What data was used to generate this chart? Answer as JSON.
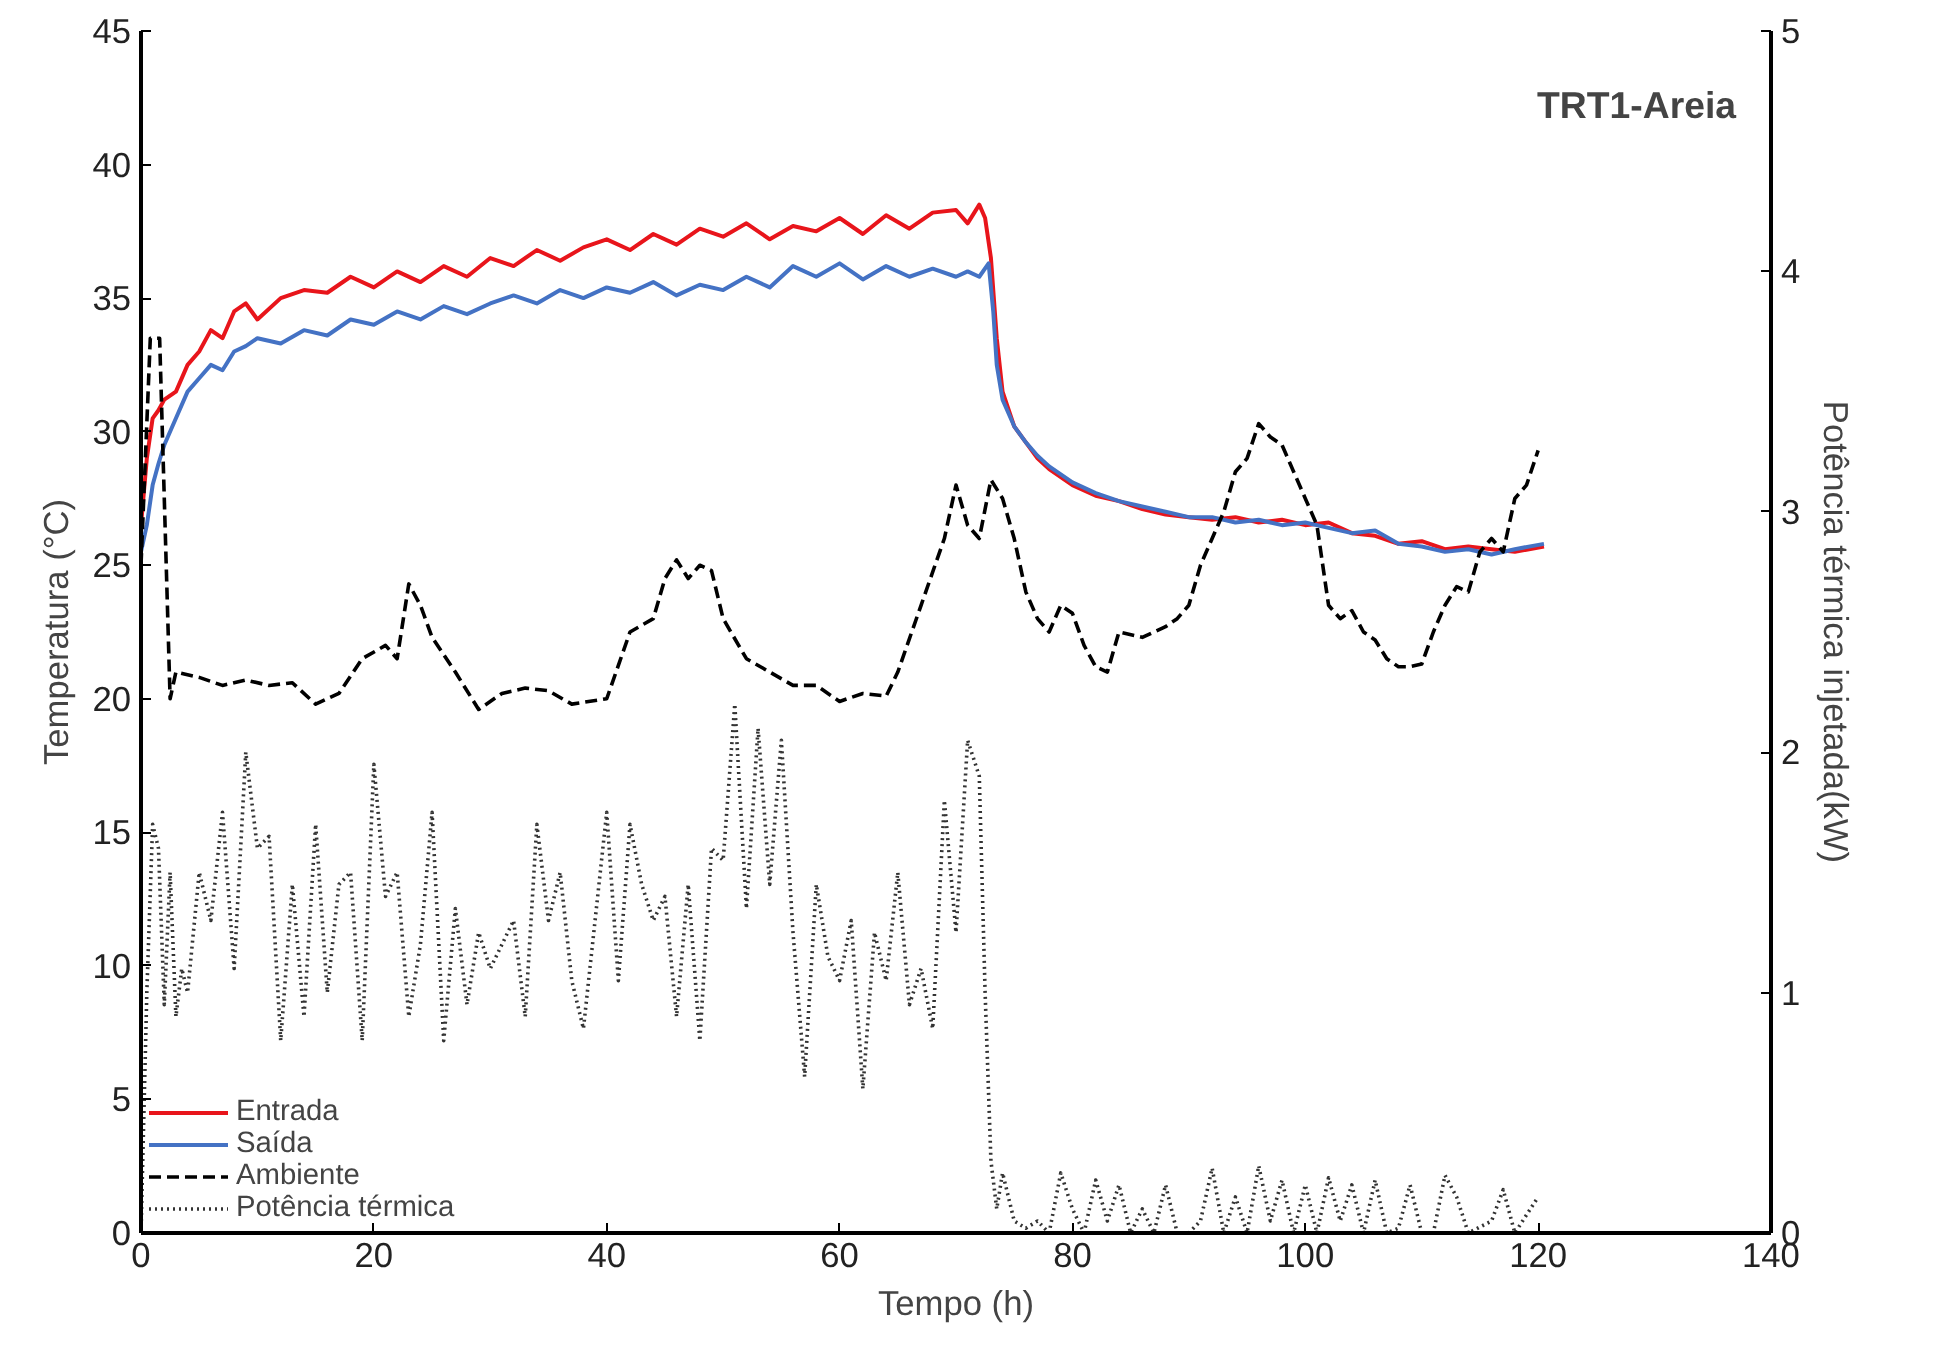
{
  "chart_data": {
    "type": "line",
    "title": "TRT1-Areia",
    "xlabel": "Tempo (h)",
    "ylabel": "Temperatura (°C)",
    "y2label": "Potência térmica injetada(kW)",
    "xlim": [
      0,
      140
    ],
    "xticks": [
      0,
      20,
      40,
      60,
      80,
      100,
      120,
      140
    ],
    "ylim": [
      0,
      45
    ],
    "yticks": [
      0,
      5,
      10,
      15,
      20,
      25,
      30,
      35,
      40,
      45
    ],
    "y2lim": [
      0,
      5
    ],
    "y2ticks": [
      0,
      1,
      2,
      3,
      4,
      5
    ],
    "grid": false,
    "legend": "bottom left",
    "marker": "none",
    "series": [
      {
        "name": "Entrada",
        "color": "#e8151b",
        "line_style": "solid",
        "x": [
          0,
          0.5,
          1,
          1.5,
          2,
          3,
          4,
          5,
          6,
          7,
          8,
          9,
          10,
          12,
          14,
          16,
          18,
          20,
          22,
          24,
          26,
          28,
          30,
          32,
          34,
          36,
          38,
          40,
          42,
          44,
          46,
          48,
          50,
          52,
          54,
          56,
          58,
          60,
          62,
          64,
          66,
          68,
          70,
          71,
          72,
          72.5,
          73,
          73.5,
          74,
          75,
          76,
          77,
          78,
          80,
          82,
          84,
          86,
          88,
          90,
          92,
          94,
          96,
          98,
          100,
          102,
          104,
          106,
          108,
          110,
          112,
          114,
          116,
          118,
          120.5
        ],
        "values": [
          26.5,
          29,
          30.5,
          30.8,
          31.2,
          31.5,
          32.5,
          33,
          33.8,
          33.5,
          34.5,
          34.8,
          34.2,
          35,
          35.3,
          35.2,
          35.8,
          35.4,
          36,
          35.6,
          36.2,
          35.8,
          36.5,
          36.2,
          36.8,
          36.4,
          36.9,
          37.2,
          36.8,
          37.4,
          37,
          37.6,
          37.3,
          37.8,
          37.2,
          37.7,
          37.5,
          38,
          37.4,
          38.1,
          37.6,
          38.2,
          38.3,
          37.8,
          38.5,
          38,
          36.5,
          33.5,
          31.5,
          30.2,
          29.6,
          29,
          28.6,
          28,
          27.6,
          27.4,
          27.1,
          26.9,
          26.8,
          26.7,
          26.8,
          26.6,
          26.7,
          26.5,
          26.6,
          26.2,
          26.1,
          25.8,
          25.9,
          25.6,
          25.7,
          25.6,
          25.5,
          25.7
        ]
      },
      {
        "name": "Saída",
        "color": "#4472c4",
        "line_style": "solid",
        "x": [
          0,
          0.5,
          1,
          1.5,
          2,
          3,
          4,
          5,
          6,
          7,
          8,
          9,
          10,
          12,
          14,
          16,
          18,
          20,
          22,
          24,
          26,
          28,
          30,
          32,
          34,
          36,
          38,
          40,
          42,
          44,
          46,
          48,
          50,
          52,
          54,
          56,
          58,
          60,
          62,
          64,
          66,
          68,
          70,
          71,
          72,
          72.8,
          73.2,
          73.5,
          74,
          75,
          76,
          77,
          78,
          80,
          82,
          84,
          86,
          88,
          90,
          92,
          94,
          96,
          98,
          100,
          102,
          104,
          106,
          108,
          110,
          112,
          114,
          116,
          118,
          120.5
        ],
        "values": [
          25.5,
          26.5,
          28,
          28.8,
          29.5,
          30.5,
          31.5,
          32,
          32.5,
          32.3,
          33,
          33.2,
          33.5,
          33.3,
          33.8,
          33.6,
          34.2,
          34,
          34.5,
          34.2,
          34.7,
          34.4,
          34.8,
          35.1,
          34.8,
          35.3,
          35,
          35.4,
          35.2,
          35.6,
          35.1,
          35.5,
          35.3,
          35.8,
          35.4,
          36.2,
          35.8,
          36.3,
          35.7,
          36.2,
          35.8,
          36.1,
          35.8,
          36,
          35.8,
          36.3,
          34.5,
          32.5,
          31.2,
          30.2,
          29.6,
          29.1,
          28.7,
          28.1,
          27.7,
          27.4,
          27.2,
          27,
          26.8,
          26.8,
          26.6,
          26.7,
          26.5,
          26.6,
          26.4,
          26.2,
          26.3,
          25.8,
          25.7,
          25.5,
          25.6,
          25.4,
          25.6,
          25.8
        ]
      },
      {
        "name": "Ambiente",
        "color": "#000000",
        "line_style": "dashed",
        "x": [
          0,
          0.8,
          1.6,
          2.5,
          3,
          5,
          7,
          9,
          11,
          13,
          15,
          17,
          19,
          21,
          22,
          23,
          24,
          25,
          27,
          29,
          31,
          33,
          35,
          37,
          40,
          42,
          44,
          45,
          46,
          47,
          48,
          49,
          50,
          52,
          54,
          56,
          58,
          60,
          62,
          64,
          65,
          67,
          69,
          70,
          71,
          72,
          73,
          74,
          75,
          76,
          77,
          78,
          79,
          80,
          81,
          82,
          83,
          84,
          86,
          88,
          89,
          90,
          91,
          92,
          93,
          94,
          95,
          96,
          97,
          98,
          99,
          100,
          101,
          102,
          103,
          104,
          105,
          106,
          107,
          108,
          109,
          110,
          111,
          112,
          113,
          114,
          115,
          116,
          117,
          118,
          119,
          120
        ],
        "values": [
          25,
          33.5,
          33.5,
          20,
          21,
          20.8,
          20.5,
          20.7,
          20.5,
          20.6,
          19.8,
          20.2,
          21.5,
          22,
          21.5,
          24.3,
          23.5,
          22.3,
          21,
          19.6,
          20.2,
          20.4,
          20.3,
          19.8,
          20,
          22.5,
          23,
          24.5,
          25.2,
          24.5,
          25,
          24.8,
          23,
          21.5,
          21,
          20.5,
          20.5,
          19.9,
          20.2,
          20.1,
          21,
          23.5,
          26,
          28,
          26.5,
          26,
          28.2,
          27.5,
          26,
          24,
          23,
          22.5,
          23.5,
          23.2,
          22,
          21.2,
          21,
          22.5,
          22.3,
          22.7,
          23,
          23.5,
          25,
          26,
          27,
          28.5,
          29,
          30.3,
          29.8,
          29.5,
          28.5,
          27.5,
          26.5,
          23.5,
          23,
          23.3,
          22.5,
          22.2,
          21.5,
          21.2,
          21.2,
          21.3,
          22.5,
          23.5,
          24.2,
          24,
          25.5,
          26,
          25.5,
          27.5,
          28,
          29.3
        ]
      },
      {
        "name": "Potência térmica",
        "color": "#333333",
        "line_style": "dotted",
        "axis": "y2",
        "x": [
          0,
          0.5,
          1,
          1.5,
          2,
          2.5,
          3,
          3.5,
          4,
          5,
          6,
          7,
          8,
          9,
          10,
          11,
          12,
          13,
          14,
          15,
          16,
          17,
          18,
          19,
          20,
          21,
          22,
          23,
          24,
          25,
          26,
          27,
          28,
          29,
          30,
          31,
          32,
          33,
          34,
          35,
          36,
          37,
          38,
          39,
          40,
          41,
          42,
          43,
          44,
          45,
          46,
          47,
          48,
          49,
          50,
          51,
          52,
          53,
          54,
          55,
          56,
          57,
          58,
          59,
          60,
          61,
          62,
          63,
          64,
          65,
          66,
          67,
          68,
          69,
          70,
          71,
          72,
          72.5,
          73,
          73.5,
          74,
          75,
          76,
          77,
          78,
          79,
          80,
          81,
          82,
          83,
          84,
          85,
          86,
          87,
          88,
          89,
          90,
          91,
          92,
          93,
          94,
          95,
          96,
          97,
          98,
          99,
          100,
          101,
          102,
          103,
          104,
          105,
          106,
          107,
          108,
          109,
          110,
          111,
          112,
          113,
          114,
          116,
          117,
          118,
          120
        ],
        "values": [
          0,
          1.0,
          1.7,
          1.6,
          0.95,
          1.5,
          0.9,
          1.1,
          1.0,
          1.5,
          1.3,
          1.75,
          1.1,
          2.0,
          1.6,
          1.65,
          0.8,
          1.45,
          0.9,
          1.7,
          1.0,
          1.45,
          1.5,
          0.8,
          1.95,
          1.4,
          1.5,
          0.9,
          1.2,
          1.75,
          0.8,
          1.35,
          0.95,
          1.25,
          1.1,
          1.2,
          1.3,
          0.9,
          1.7,
          1.3,
          1.5,
          1.05,
          0.85,
          1.3,
          1.75,
          1.05,
          1.7,
          1.45,
          1.3,
          1.4,
          0.9,
          1.45,
          0.8,
          1.6,
          1.55,
          2.2,
          1.35,
          2.1,
          1.45,
          2.05,
          1.25,
          0.65,
          1.45,
          1.15,
          1.05,
          1.3,
          0.6,
          1.25,
          1.05,
          1.5,
          0.95,
          1.1,
          0.85,
          1.8,
          1.25,
          2.05,
          1.9,
          1.0,
          0.3,
          0.1,
          0.25,
          0.05,
          0.02,
          0.05,
          0,
          0.25,
          0.1,
          0,
          0.22,
          0.05,
          0.2,
          0,
          0.1,
          0,
          0.2,
          0,
          0,
          0.05,
          0.27,
          0,
          0.15,
          0,
          0.28,
          0.05,
          0.22,
          0,
          0.2,
          0,
          0.23,
          0.05,
          0.2,
          0,
          0.22,
          0,
          0.02,
          0.2,
          0,
          0,
          0.24,
          0.15,
          0,
          0.05,
          0.18,
          0,
          0.15
        ]
      }
    ]
  }
}
